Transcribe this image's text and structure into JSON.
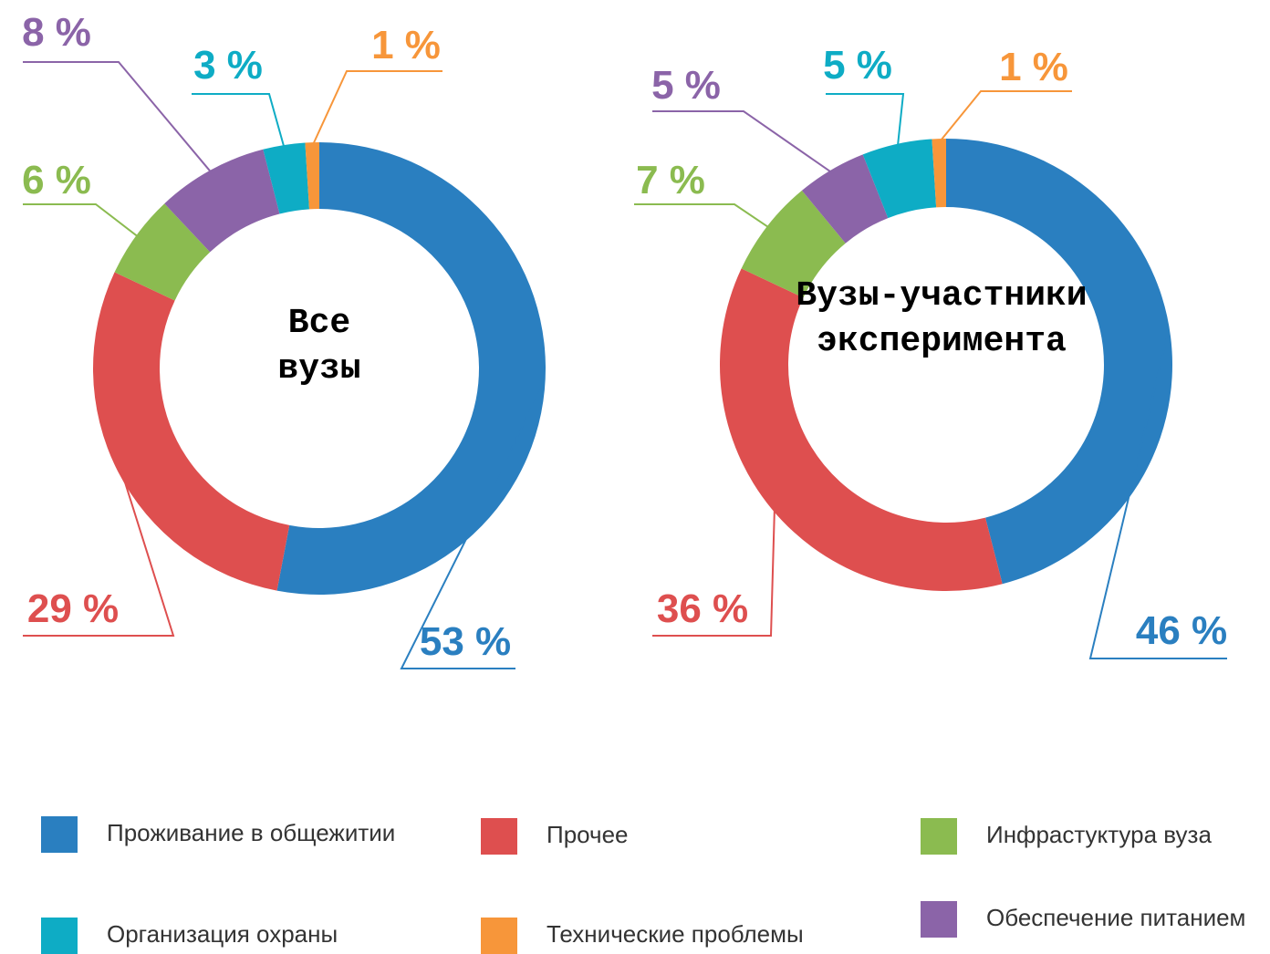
{
  "chart_data": [
    {
      "type": "pie",
      "title": "Все вузы",
      "values": [
        53,
        29,
        6,
        8,
        3,
        1
      ],
      "value_labels": [
        "53 %",
        "29 %",
        "6 %",
        "8 %",
        "3 %",
        "1 %"
      ]
    },
    {
      "type": "pie",
      "title": "Вузы-участники эксперимента",
      "values": [
        46,
        36,
        7,
        5,
        5,
        1
      ],
      "value_labels": [
        "46 %",
        "36 %",
        "7 %",
        "5 %",
        "5 %",
        "1 %"
      ]
    }
  ],
  "legend": {
    "labels": [
      "Проживание в общежитии",
      "Прочее",
      "Инфрастуктура вуза",
      "Обеспечение питанием",
      "Организация охраны",
      "Технические проблемы"
    ],
    "colors": [
      "#2a7fc0",
      "#de4f4f",
      "#8bbb50",
      "#8b64a8",
      "#0eacc5",
      "#f7963a"
    ]
  }
}
